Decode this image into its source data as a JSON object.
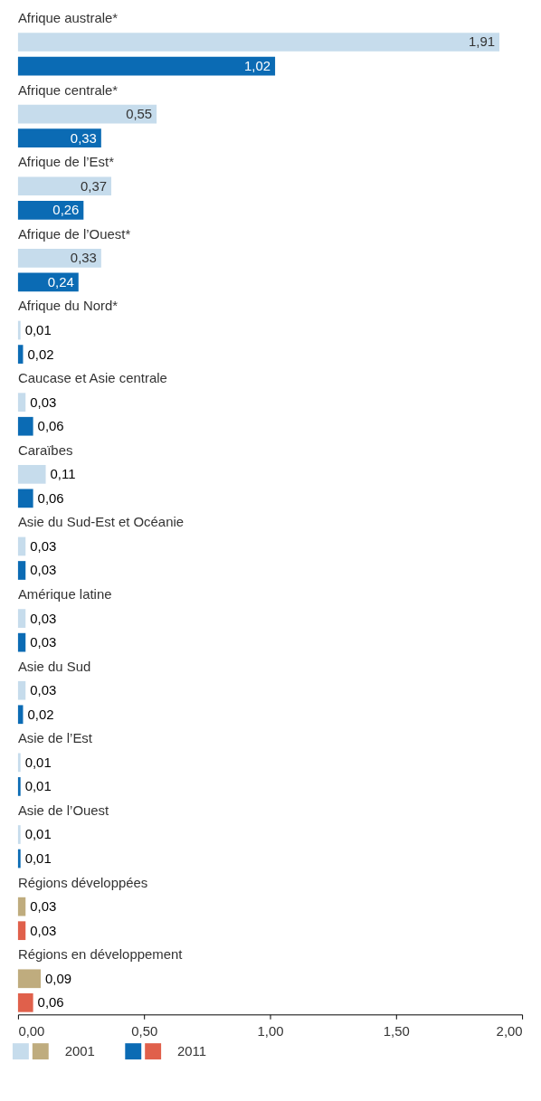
{
  "chart_data": {
    "type": "bar",
    "orientation": "horizontal",
    "categories": [
      "Afrique australe*",
      "Afrique centrale*",
      "Afrique de l’Est*",
      "Afrique de l’Ouest*",
      "Afrique du Nord*",
      "Caucase et Asie centrale",
      "Caraïbes",
      "Asie du Sud-Est et Océanie",
      "Amérique latine",
      "Asie du Sud",
      "Asie de l’Est",
      "Asie de l’Ouest",
      "Régions développées",
      "Régions en développement"
    ],
    "series": [
      {
        "name": "2001",
        "colors": [
          "#c6dcec",
          "#c6dcec",
          "#c6dcec",
          "#c6dcec",
          "#c6dcec",
          "#c6dcec",
          "#c6dcec",
          "#c6dcec",
          "#c6dcec",
          "#c6dcec",
          "#c6dcec",
          "#c6dcec",
          "#bfac7e",
          "#bfac7e"
        ],
        "values": [
          1.91,
          0.55,
          0.37,
          0.33,
          0.01,
          0.03,
          0.11,
          0.03,
          0.03,
          0.03,
          0.01,
          0.01,
          0.03,
          0.09
        ],
        "value_labels": [
          "1,91",
          "0,55",
          "0,37",
          "0,33",
          "0,01",
          "0,03",
          "0,11",
          "0,03",
          "0,03",
          "0,03",
          "0,01",
          "0,01",
          "0,03",
          "0,09"
        ]
      },
      {
        "name": "2011",
        "colors": [
          "#0b6bb4",
          "#0b6bb4",
          "#0b6bb4",
          "#0b6bb4",
          "#0b6bb4",
          "#0b6bb4",
          "#0b6bb4",
          "#0b6bb4",
          "#0b6bb4",
          "#0b6bb4",
          "#0b6bb4",
          "#0b6bb4",
          "#e0604b",
          "#e0604b"
        ],
        "values": [
          1.02,
          0.33,
          0.26,
          0.24,
          0.02,
          0.06,
          0.06,
          0.03,
          0.03,
          0.02,
          0.01,
          0.01,
          0.03,
          0.06
        ],
        "value_labels": [
          "1,02",
          "0,33",
          "0,26",
          "0,24",
          "0,02",
          "0,06",
          "0,06",
          "0,03",
          "0,03",
          "0,02",
          "0,01",
          "0,01",
          "0,03",
          "0,06"
        ]
      }
    ],
    "xlim": [
      0,
      2
    ],
    "xticks": [
      {
        "value": 0,
        "label": "0,00"
      },
      {
        "value": 0.5,
        "label": "0,50"
      },
      {
        "value": 1,
        "label": "1,00"
      },
      {
        "value": 1.5,
        "label": "1,50"
      },
      {
        "value": 2,
        "label": "2,00"
      }
    ],
    "grid": false,
    "legend": "bottom"
  }
}
